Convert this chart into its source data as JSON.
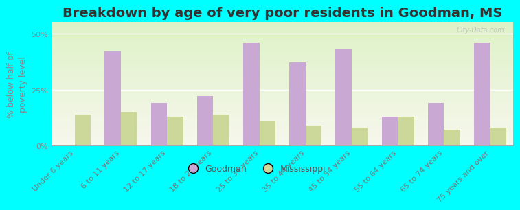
{
  "title": "Breakdown by age of very poor residents in Goodman, MS",
  "ylabel": "% below half of\npoverty level",
  "categories": [
    "Under 6 years",
    "6 to 11 years",
    "12 to 17 years",
    "18 to 24 years",
    "25 to 34 years",
    "35 to 44 years",
    "45 to 54 years",
    "55 to 64 years",
    "65 to 74 years",
    "75 years and over"
  ],
  "goodman_values": [
    0,
    42,
    19,
    22,
    46,
    37,
    43,
    13,
    19,
    46
  ],
  "mississippi_values": [
    14,
    15,
    13,
    14,
    11,
    9,
    8,
    13,
    7,
    8
  ],
  "goodman_color": "#c9a8d4",
  "mississippi_color": "#ccd89a",
  "background_color": "#00ffff",
  "ylim": [
    0,
    55
  ],
  "yticks": [
    0,
    25,
    50
  ],
  "ytick_labels": [
    "0%",
    "25%",
    "50%"
  ],
  "bar_width": 0.35,
  "title_fontsize": 14,
  "axis_label_fontsize": 9,
  "tick_fontsize": 8,
  "legend_labels": [
    "Goodman",
    "Mississippi"
  ],
  "watermark": "City-Data.com"
}
